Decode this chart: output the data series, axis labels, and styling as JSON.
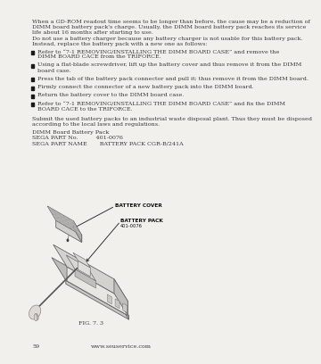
{
  "bg_color": "#f2f0ed",
  "text_color": "#3a3a3a",
  "page_number": "59",
  "website": "www.seuservice.com",
  "fig_label": "FIG. 7. 3",
  "intro_text": [
    "When a GD-ROM readout time seems to be longer than before, the cause may be a reduction of",
    "DIMM board battery pack's charge. Usually, the DIMM board battery pack reaches its service",
    "life about 16 months after starting to use.",
    "Do not use a battery charger because any battery charger is not usable for this battery pack.",
    "Instead, replace the battery pack with a new one as follows:"
  ],
  "bullet_items": [
    [
      "Refer to “7-1 REMOVING/INSTALLING THE DIMM BOARD CASE” and remove the",
      "DIMM BOARD CACE from the TRIFORCE."
    ],
    [
      "Using a flat-blade screwdriver, lift up the battery cover and thus remove it from the DIMM",
      "board case."
    ],
    [
      "Press the tab of the battery pack connector and pull it; thus remove it from the DIMM board."
    ],
    [
      "Firmly connect the connector of a new battery pack into the DIMM board."
    ],
    [
      "Return the battery cover to the DIMM board case."
    ],
    [
      "Refer to “7-1 REMOVING/INSTALLING THE DIMM BOARD CASE” and fix the DIMM",
      "BOARD CACE to the TRIFORCE."
    ]
  ],
  "submit_text": [
    "Submit the used battery packs to an industrial waste disposal plant. Thus they must be disposed",
    "according to the local laws and regulations."
  ],
  "parts_info": [
    "DIMM Board Battery Pack",
    "SEGA PART No.          401-0076",
    "SEGA PART NAME       BATTERY PACK CGR-B/241A"
  ],
  "labels": {
    "battery_cover": "BATTERY COVER",
    "battery_pack_line1": "BATTERY PACK",
    "battery_pack_line2": "401-0076"
  }
}
